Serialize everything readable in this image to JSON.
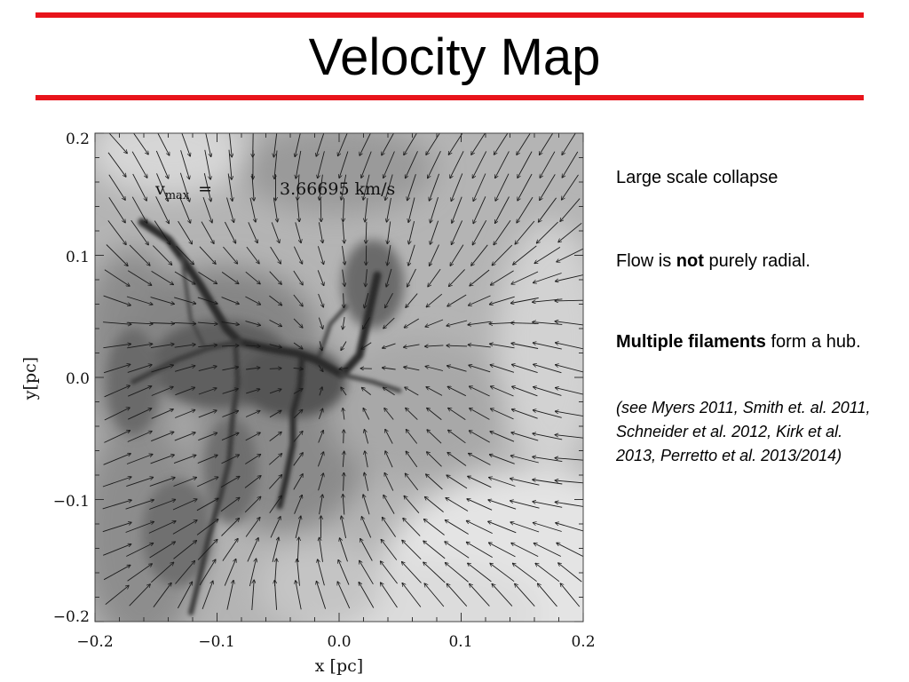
{
  "slide": {
    "title": "Velocity Map",
    "rule_color": "#e8141b"
  },
  "figure": {
    "vmax_symbol": "v",
    "vmax_subscript": "max",
    "vmax_equals": "=",
    "vmax_value": "3.66695 km/s",
    "x_axis_title": "x [pc]",
    "y_axis_title": "y[pc]",
    "x_ticks": [
      "−0.2",
      "−0.1",
      "0.0",
      "0.1",
      "0.2"
    ],
    "y_ticks": [
      "0.2",
      "0.1",
      "0.0",
      "−0.1",
      "−0.2"
    ],
    "x_range": [
      -0.2,
      0.2
    ],
    "y_range": [
      -0.2,
      0.2
    ],
    "colormap": "grayscale column density",
    "vector_color": "#1a1a1a"
  },
  "bullets": {
    "collapse": "Large scale collapse",
    "radial_before": "Flow is ",
    "radial_bold": "not",
    "radial_after": " purely radial.",
    "hub_bold": "Multiple filaments",
    "hub_after": " form a hub.",
    "references": "(see Myers 2011, Smith et. al. 2011, Schneider et al. 2012, Kirk et al. 2013, Perretto et al. 2013/2014)"
  }
}
